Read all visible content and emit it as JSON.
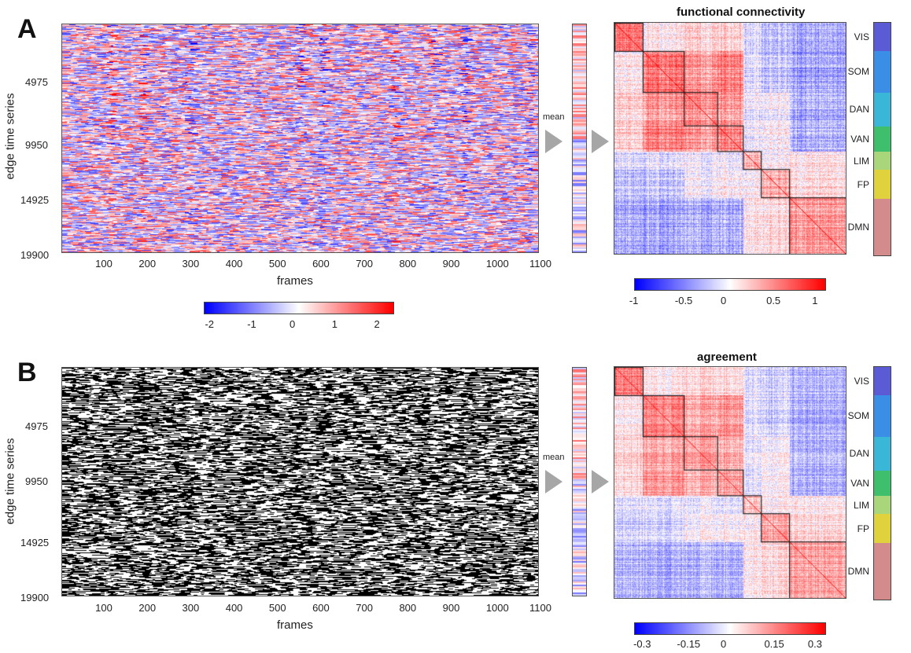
{
  "panels": [
    {
      "letter": "A",
      "ylabel": "edge time series",
      "xlabel": "frames",
      "yticks": [
        "4975",
        "9950",
        "14925",
        "19900"
      ],
      "xticks": [
        "100",
        "200",
        "300",
        "400",
        "500",
        "600",
        "700",
        "800",
        "900",
        "1000",
        "1100"
      ],
      "mean_label": "mean",
      "matrix_title": "functional connectivity",
      "ts_colormap": "bwr",
      "ts_colorbar_ticks": [
        "-2",
        "-1",
        "0",
        "1",
        "2"
      ],
      "matrix_colorbar_ticks": [
        "-1",
        "-0.5",
        "0",
        "0.5",
        "1"
      ],
      "networks": [
        "VIS",
        "SOM",
        "DAN",
        "VAN",
        "LIM",
        "FP",
        "DMN"
      ]
    },
    {
      "letter": "B",
      "ylabel": "edge time series",
      "xlabel": "frames",
      "yticks": [
        "4975",
        "9950",
        "14925",
        "19900"
      ],
      "xticks": [
        "100",
        "200",
        "300",
        "400",
        "500",
        "600",
        "700",
        "800",
        "900",
        "1000",
        "1100"
      ],
      "mean_label": "mean",
      "matrix_title": "agreement",
      "ts_colormap": "binary",
      "matrix_colorbar_ticks": [
        "-0.3",
        "-0.15",
        "0",
        "0.15",
        "0.3"
      ],
      "networks": [
        "VIS",
        "SOM",
        "DAN",
        "VAN",
        "LIM",
        "FP",
        "DMN"
      ]
    }
  ],
  "network_colors": [
    "#5b5bd6",
    "#3a8ee6",
    "#3ab7d6",
    "#3fbf6b",
    "#a9d67a",
    "#e0d23c",
    "#d48b8b"
  ],
  "network_fractions": [
    0.11,
    0.16,
    0.13,
    0.1,
    0.07,
    0.11,
    0.22
  ],
  "colors": {
    "blue": "#0000ff",
    "white": "#ffffff",
    "red": "#ff0000",
    "black": "#000000"
  }
}
